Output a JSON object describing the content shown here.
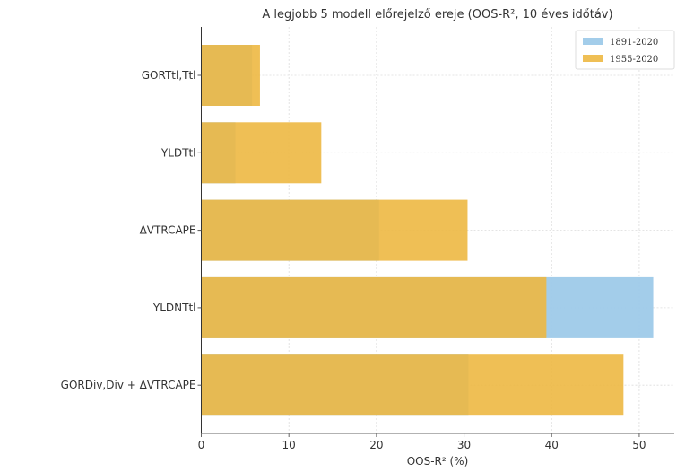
{
  "chart_data": {
    "type": "bar",
    "orientation": "horizontal",
    "title": "A legjobb 5 modell előrejelző ereje (OOS-R², 10 éves időtáv)",
    "xlabel": "OOS-R² (%)",
    "ylabel": "",
    "xlim": [
      0,
      54
    ],
    "xticks": [
      0,
      10,
      20,
      30,
      40,
      50
    ],
    "grid": true,
    "legend_position": "top-right",
    "categories": [
      "GORTtl,Ttl",
      "YLDTtl",
      "ΔVTRCAPE",
      "YLDNTtl",
      "GORDiv,Div + ΔVTRCAPE"
    ],
    "series": [
      {
        "name": "1891-2020",
        "color": "#9ecae9",
        "values": [
          5.8,
          3.9,
          20.3,
          51.6,
          30.5
        ]
      },
      {
        "name": "1955-2020",
        "color": "#edb843",
        "values": [
          6.7,
          13.7,
          30.4,
          39.4,
          48.2
        ]
      }
    ]
  }
}
